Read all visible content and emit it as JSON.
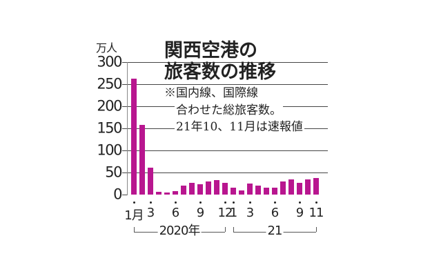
{
  "chart_data": {
    "type": "bar",
    "title": "関西空港の旅客数の推移",
    "title_lines": [
      "関西空港の",
      "旅客数の推移"
    ],
    "notes": [
      "※国内線、国際線",
      "合わせた総旅客数。",
      "21年10、11月は速報値"
    ],
    "ylabel": "万人",
    "ylim": [
      0,
      300
    ],
    "yticks": [
      "300",
      "250",
      "200",
      "150",
      "100",
      "50",
      "0"
    ],
    "grid": true,
    "bar_color": "#B8168F",
    "categories": [
      "2020-01",
      "2020-02",
      "2020-03",
      "2020-04",
      "2020-05",
      "2020-06",
      "2020-07",
      "2020-08",
      "2020-09",
      "2020-10",
      "2020-11",
      "2020-12",
      "2021-01",
      "2021-02",
      "2021-03",
      "2021-04",
      "2021-05",
      "2021-06",
      "2021-07",
      "2021-08",
      "2021-09",
      "2021-10",
      "2021-11"
    ],
    "values": [
      263,
      158,
      61,
      7,
      4,
      8,
      21,
      27,
      23,
      30,
      33,
      26,
      15,
      10,
      25,
      21,
      15,
      15,
      29,
      35,
      27,
      35,
      38
    ],
    "xtick_labels": [
      {
        "index": 0,
        "label": "1月"
      },
      {
        "index": 2,
        "label": "3"
      },
      {
        "index": 5,
        "label": "6"
      },
      {
        "index": 8,
        "label": "9"
      },
      {
        "index": 11,
        "label": "12"
      },
      {
        "index": 12,
        "label": "1"
      },
      {
        "index": 14,
        "label": "3"
      },
      {
        "index": 17,
        "label": "6"
      },
      {
        "index": 20,
        "label": "9"
      },
      {
        "index": 22,
        "label": "11"
      }
    ],
    "year_groups": [
      {
        "label": "2020年",
        "from": 0,
        "to": 11
      },
      {
        "label": "21",
        "from": 12,
        "to": 22
      }
    ]
  }
}
